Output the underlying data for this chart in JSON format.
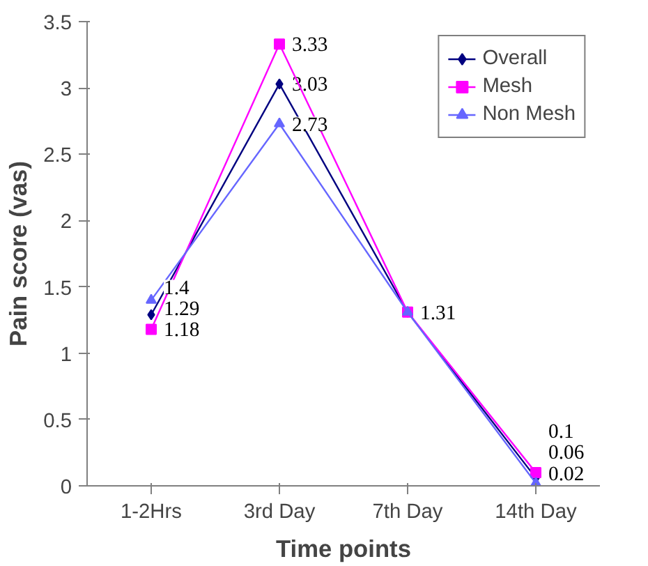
{
  "chart_data": {
    "type": "line",
    "xlabel": "Time points",
    "ylabel": "Pain score (vas)",
    "categories": [
      "1-2Hrs",
      "3rd Day",
      "7th Day",
      "14th Day"
    ],
    "series": [
      {
        "name": "Overall",
        "color": "#000080",
        "marker": "diamond",
        "values": [
          1.29,
          3.03,
          1.31,
          0.06
        ],
        "value_labels": [
          "1.29",
          "3.03",
          null,
          "0.06"
        ]
      },
      {
        "name": "Mesh",
        "color": "#ff00ff",
        "marker": "square",
        "values": [
          1.18,
          3.33,
          1.31,
          0.1
        ],
        "value_labels": [
          "1.18",
          "3.33",
          "1.31",
          "0.1"
        ]
      },
      {
        "name": "Non Mesh",
        "color": "#6666ff",
        "marker": "triangle",
        "values": [
          1.4,
          2.73,
          1.31,
          0.02
        ],
        "value_labels": [
          "1.4",
          "2.73",
          null,
          "0.02"
        ]
      }
    ],
    "ylim": [
      0,
      3.5
    ],
    "yticks": [
      0,
      0.5,
      1,
      1.5,
      2,
      2.5,
      3,
      3.5
    ],
    "grid": false,
    "legend": "top right"
  }
}
